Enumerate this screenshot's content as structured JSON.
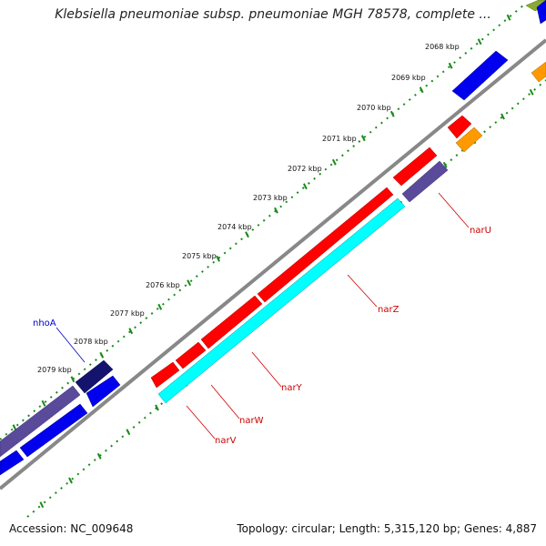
{
  "title": "Klebsiella pneumoniae subsp. pneumoniae MGH 78578, complete ...",
  "footer": {
    "accession": "Accession: NC_009648",
    "summary": "Topology: circular; Length: 5,315,120 bp; Genes: 4,887"
  },
  "colors": {
    "backbone": "#808080",
    "tick": "#1a8a1a",
    "label_red": "#cc0000",
    "label_blue": "#0000cc"
  },
  "ticks": [
    {
      "label": "2068 kbp",
      "pos": 2068
    },
    {
      "label": "2069 kbp",
      "pos": 2069
    },
    {
      "label": "2070 kbp",
      "pos": 2070
    },
    {
      "label": "2071 kbp",
      "pos": 2071
    },
    {
      "label": "2072 kbp",
      "pos": 2072
    },
    {
      "label": "2073 kbp",
      "pos": 2073
    },
    {
      "label": "2074 kbp",
      "pos": 2074
    },
    {
      "label": "2075 kbp",
      "pos": 2075
    },
    {
      "label": "2076 kbp",
      "pos": 2076
    },
    {
      "label": "2077 kbp",
      "pos": 2077
    },
    {
      "label": "2078 kbp",
      "pos": 2078
    },
    {
      "label": "2079 kbp",
      "pos": 2079
    }
  ],
  "gene_labels": [
    {
      "name": "narU",
      "color": "#cc0000"
    },
    {
      "name": "narZ",
      "color": "#cc0000"
    },
    {
      "name": "narY",
      "color": "#cc0000"
    },
    {
      "name": "narW",
      "color": "#cc0000"
    },
    {
      "name": "narV",
      "color": "#cc0000"
    },
    {
      "name": "nhoA",
      "color": "#0000cc"
    }
  ],
  "features": [
    {
      "color": "#ff0000"
    },
    {
      "color": "#ff0000"
    },
    {
      "color": "#ff0000"
    },
    {
      "color": "#ff0000"
    },
    {
      "color": "#ff0000"
    },
    {
      "color": "#ff0000"
    },
    {
      "color": "#5a4a9a"
    },
    {
      "color": "#00ffff"
    },
    {
      "color": "#ff9900"
    },
    {
      "color": "#0000ee"
    },
    {
      "color": "#0000ee"
    },
    {
      "color": "#0000ee"
    },
    {
      "color": "#14146e"
    },
    {
      "color": "#5a4a9a"
    },
    {
      "color": "#ff9900"
    },
    {
      "color": "#88aa33"
    },
    {
      "color": "#0000ee"
    }
  ]
}
